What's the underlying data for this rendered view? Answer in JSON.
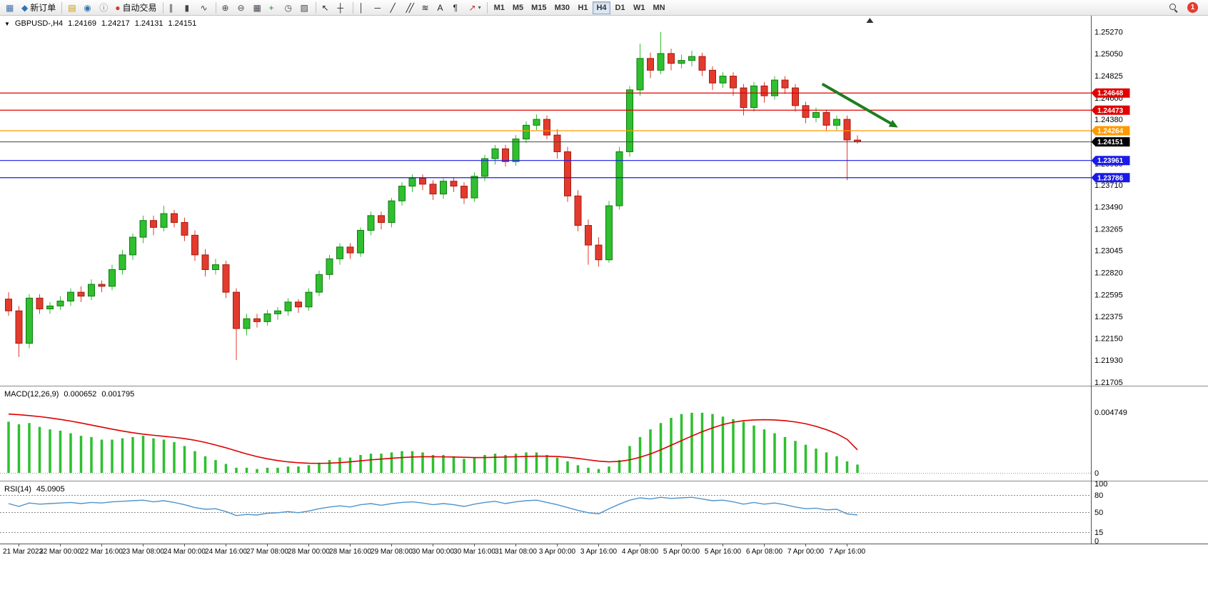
{
  "toolbar": {
    "groups": [
      {
        "items": [
          {
            "name": "new-chart-button",
            "glyph": "▦",
            "color": "#3b6ea5"
          },
          {
            "name": "new-order-button",
            "glyph": "◆",
            "color": "#2e74b5",
            "label": "新订单"
          }
        ]
      },
      {
        "items": [
          {
            "name": "charts-profile-button",
            "glyph": "▤",
            "color": "#c79810"
          },
          {
            "name": "market-watch-button",
            "glyph": "◉",
            "color": "#2e74b5"
          },
          {
            "name": "data-window-button",
            "glyph": "ⓘ",
            "color": "#777777"
          },
          {
            "name": "autotrading-button",
            "glyph": "●",
            "color": "#d23b2f",
            "label": "自动交易"
          }
        ]
      },
      {
        "items": [
          {
            "name": "bar-chart-button",
            "glyph": "∥",
            "color": "#444444"
          },
          {
            "name": "candlestick-chart-button",
            "glyph": "▮",
            "color": "#444444"
          },
          {
            "name": "line-chart-button",
            "glyph": "∿",
            "color": "#444444"
          }
        ]
      },
      {
        "items": [
          {
            "name": "zoom-in-button",
            "glyph": "⊕",
            "color": "#444444"
          },
          {
            "name": "zoom-out-button",
            "glyph": "⊖",
            "color": "#444444"
          },
          {
            "name": "tile-windows-button",
            "glyph": "▦",
            "color": "#444444"
          },
          {
            "name": "indicators-button",
            "glyph": "+",
            "color": "#1f8a1f"
          },
          {
            "name": "periods-button",
            "glyph": "◷",
            "color": "#444444"
          },
          {
            "name": "templates-button",
            "glyph": "▨",
            "color": "#444444"
          }
        ]
      },
      {
        "items": [
          {
            "name": "cursor-button",
            "glyph": "↖",
            "color": "#222222"
          },
          {
            "name": "crosshair-button",
            "glyph": "┼",
            "color": "#222222"
          }
        ]
      },
      {
        "items": [
          {
            "name": "vertical-line-button",
            "glyph": "│",
            "color": "#222222"
          },
          {
            "name": "horizontal-line-button",
            "glyph": "─",
            "color": "#222222"
          },
          {
            "name": "trendline-button",
            "glyph": "╱",
            "color": "#222222"
          },
          {
            "name": "equidistant-channel-button",
            "glyph": "╱╱",
            "color": "#222222"
          },
          {
            "name": "fibonacci-button",
            "glyph": "≋",
            "color": "#222222"
          },
          {
            "name": "text-button",
            "glyph": "A",
            "color": "#222222"
          },
          {
            "name": "text-label-button",
            "glyph": "¶",
            "color": "#222222"
          },
          {
            "name": "arrows-button",
            "glyph": "↗",
            "color": "#c03a2b",
            "caret": "▾"
          }
        ]
      }
    ],
    "timeframes": [
      {
        "label": "M1"
      },
      {
        "label": "M5"
      },
      {
        "label": "M15"
      },
      {
        "label": "M30"
      },
      {
        "label": "H1"
      },
      {
        "label": "H4",
        "active": true
      },
      {
        "label": "D1"
      },
      {
        "label": "W1"
      },
      {
        "label": "MN"
      }
    ],
    "right_items": [
      {
        "name": "search-button",
        "icon": "magnifier"
      },
      {
        "name": "notifications-button",
        "icon": "badge",
        "badge": "1"
      }
    ]
  },
  "chart": {
    "header": {
      "triangle": "▼",
      "symbol_period": "GBPUSD-,H4",
      "open": "1.24169",
      "high": "1.24217",
      "low": "1.24131",
      "close": "1.24151"
    },
    "macd_label": {
      "name": "MACD(12,26,9)",
      "value": "0.000652",
      "signal": "0.001795"
    },
    "rsi_label": {
      "name": "RSI(14)",
      "value": "45.0905"
    }
  },
  "chart_data": {
    "type": "candlestick",
    "symbol": "GBPUSD-",
    "timeframe": "H4",
    "colors": {
      "up": "#2fbf2f",
      "up_border": "#117a11",
      "down": "#e23b2e",
      "down_border": "#a31b10",
      "macd_histogram": "#2fbf2f",
      "macd_signal": "#dd0000",
      "rsi_line": "#4f94cd",
      "hline_red": "#e00000",
      "hline_orange": "#ff9900",
      "hline_blue": "#1a1ae6",
      "current_price_tag": "#000000"
    },
    "ohlc": [
      [
        1.2255,
        1.2262,
        1.2238,
        1.2243
      ],
      [
        1.2243,
        1.2248,
        1.2196,
        1.221
      ],
      [
        1.221,
        1.226,
        1.2205,
        1.2256
      ],
      [
        1.2256,
        1.226,
        1.224,
        1.2245
      ],
      [
        1.2245,
        1.2252,
        1.224,
        1.2248
      ],
      [
        1.2248,
        1.2258,
        1.2244,
        1.2253
      ],
      [
        1.2253,
        1.2266,
        1.2248,
        1.2262
      ],
      [
        1.2262,
        1.2268,
        1.2252,
        1.2258
      ],
      [
        1.2258,
        1.2275,
        1.2254,
        1.227
      ],
      [
        1.227,
        1.2274,
        1.2262,
        1.2268
      ],
      [
        1.2268,
        1.229,
        1.2264,
        1.2285
      ],
      [
        1.2285,
        1.2305,
        1.228,
        1.23
      ],
      [
        1.23,
        1.2322,
        1.2295,
        1.2318
      ],
      [
        1.2318,
        1.234,
        1.2312,
        1.2335
      ],
      [
        1.2335,
        1.234,
        1.232,
        1.2328
      ],
      [
        1.2328,
        1.235,
        1.2324,
        1.2342
      ],
      [
        1.2342,
        1.2346,
        1.2328,
        1.2333
      ],
      [
        1.2333,
        1.2338,
        1.2314,
        1.232
      ],
      [
        1.232,
        1.2325,
        1.2294,
        1.23
      ],
      [
        1.23,
        1.2306,
        1.2278,
        1.2285
      ],
      [
        1.2285,
        1.2296,
        1.228,
        1.229
      ],
      [
        1.229,
        1.2294,
        1.2256,
        1.2262
      ],
      [
        1.2262,
        1.2266,
        1.2193,
        1.2225
      ],
      [
        1.2225,
        1.224,
        1.2218,
        1.2235
      ],
      [
        1.2235,
        1.224,
        1.2226,
        1.2232
      ],
      [
        1.2232,
        1.2244,
        1.2228,
        1.224
      ],
      [
        1.224,
        1.2247,
        1.2234,
        1.2243
      ],
      [
        1.2243,
        1.2256,
        1.2238,
        1.2252
      ],
      [
        1.2252,
        1.2255,
        1.2241,
        1.2247
      ],
      [
        1.2247,
        1.2266,
        1.2243,
        1.2262
      ],
      [
        1.2262,
        1.2284,
        1.2258,
        1.228
      ],
      [
        1.228,
        1.23,
        1.2275,
        1.2296
      ],
      [
        1.2296,
        1.2312,
        1.229,
        1.2308
      ],
      [
        1.2308,
        1.2312,
        1.2296,
        1.2302
      ],
      [
        1.2302,
        1.2328,
        1.2298,
        1.2325
      ],
      [
        1.2325,
        1.2344,
        1.232,
        1.234
      ],
      [
        1.234,
        1.2344,
        1.2326,
        1.2333
      ],
      [
        1.2333,
        1.2358,
        1.2328,
        1.2355
      ],
      [
        1.2355,
        1.2374,
        1.235,
        1.237
      ],
      [
        1.237,
        1.2382,
        1.2364,
        1.2378
      ],
      [
        1.2378,
        1.2382,
        1.2366,
        1.2372
      ],
      [
        1.2372,
        1.2376,
        1.2356,
        1.2362
      ],
      [
        1.2362,
        1.2378,
        1.2357,
        1.2375
      ],
      [
        1.2375,
        1.2379,
        1.2364,
        1.237
      ],
      [
        1.237,
        1.2374,
        1.2352,
        1.2358
      ],
      [
        1.2358,
        1.2384,
        1.2354,
        1.238
      ],
      [
        1.238,
        1.2402,
        1.2375,
        1.2398
      ],
      [
        1.2398,
        1.2412,
        1.2392,
        1.2408
      ],
      [
        1.2408,
        1.2412,
        1.239,
        1.2395
      ],
      [
        1.2395,
        1.2422,
        1.2391,
        1.2418
      ],
      [
        1.2418,
        1.2436,
        1.2414,
        1.2432
      ],
      [
        1.2432,
        1.2443,
        1.2427,
        1.2438
      ],
      [
        1.2438,
        1.2442,
        1.2418,
        1.2422
      ],
      [
        1.2422,
        1.2428,
        1.2398,
        1.2405
      ],
      [
        1.2405,
        1.241,
        1.2354,
        1.236
      ],
      [
        1.236,
        1.2366,
        1.2324,
        1.233
      ],
      [
        1.233,
        1.2336,
        1.229,
        1.231
      ],
      [
        1.231,
        1.2318,
        1.2288,
        1.2295
      ],
      [
        1.2295,
        1.2355,
        1.2292,
        1.235
      ],
      [
        1.235,
        1.241,
        1.2346,
        1.2405
      ],
      [
        1.2405,
        1.2472,
        1.24,
        1.2468
      ],
      [
        1.2468,
        1.2515,
        1.2462,
        1.25
      ],
      [
        1.25,
        1.2506,
        1.248,
        1.2488
      ],
      [
        1.2488,
        1.2527,
        1.2484,
        1.2505
      ],
      [
        1.2505,
        1.251,
        1.2488,
        1.2495
      ],
      [
        1.2495,
        1.2504,
        1.249,
        1.2498
      ],
      [
        1.2498,
        1.2508,
        1.2492,
        1.2502
      ],
      [
        1.2502,
        1.2506,
        1.2482,
        1.2488
      ],
      [
        1.2488,
        1.2492,
        1.2468,
        1.2475
      ],
      [
        1.2475,
        1.2486,
        1.247,
        1.2482
      ],
      [
        1.2482,
        1.2486,
        1.2462,
        1.247
      ],
      [
        1.247,
        1.2474,
        1.2442,
        1.245
      ],
      [
        1.245,
        1.2476,
        1.2446,
        1.2472
      ],
      [
        1.2472,
        1.2476,
        1.2455,
        1.2462
      ],
      [
        1.2462,
        1.2482,
        1.2458,
        1.2478
      ],
      [
        1.2478,
        1.2482,
        1.2464,
        1.247
      ],
      [
        1.247,
        1.2474,
        1.2446,
        1.2452
      ],
      [
        1.2452,
        1.2456,
        1.2434,
        1.244
      ],
      [
        1.244,
        1.245,
        1.2435,
        1.2445
      ],
      [
        1.2445,
        1.2448,
        1.2426,
        1.2432
      ],
      [
        1.2432,
        1.2442,
        1.2427,
        1.2438
      ],
      [
        1.2438,
        1.2442,
        1.2376,
        1.2417
      ],
      [
        1.24169,
        1.24217,
        1.24131,
        1.24151
      ]
    ],
    "price_axis_ticks": [
      "1.25270",
      "1.25050",
      "1.24825",
      "1.24600",
      "1.24380",
      "1.24155",
      "1.23930",
      "1.23710",
      "1.23490",
      "1.23265",
      "1.23045",
      "1.22820",
      "1.22595",
      "1.22375",
      "1.22150",
      "1.21930",
      "1.21705"
    ],
    "time_axis_labels": [
      "21 Mar 2023",
      "22 Mar 00:00",
      "22 Mar 16:00",
      "23 Mar 08:00",
      "24 Mar 00:00",
      "24 Mar 16:00",
      "27 Mar 08:00",
      "28 Mar 00:00",
      "28 Mar 16:00",
      "29 Mar 08:00",
      "30 Mar 00:00",
      "30 Mar 16:00",
      "31 Mar 08:00",
      "3 Apr 00:00",
      "3 Apr 16:00",
      "4 Apr 08:00",
      "5 Apr 00:00",
      "5 Apr 16:00",
      "6 Apr 08:00",
      "7 Apr 00:00",
      "7 Apr 16:00"
    ],
    "hlines": [
      {
        "price": 1.24648,
        "label": "1.24648",
        "color": "#e00000"
      },
      {
        "price": 1.24473,
        "label": "1.24473",
        "color": "#e00000"
      },
      {
        "price": 1.24264,
        "label": "1.24264",
        "color": "#ff9900"
      },
      {
        "price": 1.23961,
        "label": "1.23961",
        "color": "#1a1ae6"
      },
      {
        "price": 1.23786,
        "label": "1.23786",
        "color": "#1a1ae6"
      }
    ],
    "current_price": {
      "value": 1.24151,
      "label": "1.24151"
    },
    "arrow": {
      "from_index": 78.6,
      "from_price": 1.2474,
      "to_index": 85.2,
      "to_price": 1.2434,
      "color": "#1e7d1e"
    },
    "shift_marker_index": 83.2,
    "macd": {
      "histogram": [
        0.004,
        0.0038,
        0.0039,
        0.0036,
        0.0034,
        0.0033,
        0.0031,
        0.0029,
        0.0028,
        0.0026,
        0.0026,
        0.0027,
        0.0028,
        0.0029,
        0.0027,
        0.0026,
        0.0024,
        0.0021,
        0.0017,
        0.0013,
        0.001,
        0.0007,
        0.0004,
        0.0004,
        0.0003,
        0.0004,
        0.0004,
        0.0005,
        0.0005,
        0.0006,
        0.0008,
        0.001,
        0.0012,
        0.0012,
        0.0014,
        0.0015,
        0.0015,
        0.0016,
        0.0017,
        0.0017,
        0.0016,
        0.0014,
        0.0014,
        0.0013,
        0.0011,
        0.0012,
        0.0014,
        0.0015,
        0.0014,
        0.0015,
        0.0016,
        0.0016,
        0.0014,
        0.0012,
        0.0009,
        0.0006,
        0.0004,
        0.0003,
        0.0005,
        0.001,
        0.0021,
        0.0028,
        0.0034,
        0.0039,
        0.0043,
        0.0046,
        0.0047,
        0.0047,
        0.0046,
        0.0044,
        0.0042,
        0.004,
        0.0037,
        0.0034,
        0.0031,
        0.0028,
        0.0025,
        0.0022,
        0.0019,
        0.0016,
        0.0013,
        0.0009,
        0.00065
      ],
      "signal": [
        0.0046,
        0.00455,
        0.00448,
        0.0044,
        0.0043,
        0.00418,
        0.00405,
        0.0039,
        0.00374,
        0.00358,
        0.00342,
        0.00327,
        0.00314,
        0.00303,
        0.00294,
        0.00286,
        0.00278,
        0.00268,
        0.00255,
        0.00238,
        0.00218,
        0.00196,
        0.00172,
        0.00148,
        0.00127,
        0.0011,
        0.00096,
        0.00086,
        0.00079,
        0.00075,
        0.00074,
        0.00076,
        0.0008,
        0.00086,
        0.00094,
        0.00102,
        0.00108,
        0.00114,
        0.0012,
        0.00124,
        0.00126,
        0.00126,
        0.00125,
        0.00124,
        0.00122,
        0.0012,
        0.0012,
        0.00122,
        0.00124,
        0.00126,
        0.00128,
        0.0013,
        0.0013,
        0.00128,
        0.00122,
        0.00113,
        0.00102,
        0.00092,
        0.00086,
        0.0009,
        0.00102,
        0.00122,
        0.00148,
        0.0018,
        0.00216,
        0.00252,
        0.00288,
        0.00322,
        0.00352,
        0.00378,
        0.00396,
        0.00408,
        0.00414,
        0.00416,
        0.00414,
        0.00408,
        0.00398,
        0.00384,
        0.00364,
        0.00338,
        0.00306,
        0.00262,
        0.0018
      ],
      "axis_ticks": [
        {
          "label": "0.004749",
          "value": 0.004749
        },
        {
          "label": "0",
          "value": 0
        }
      ]
    },
    "rsi": {
      "values": [
        65,
        60,
        66,
        64,
        65,
        66,
        67,
        65,
        67,
        66,
        68,
        69,
        70,
        71,
        68,
        70,
        67,
        63,
        58,
        55,
        56,
        51,
        44,
        46,
        45,
        48,
        49,
        51,
        49,
        52,
        56,
        59,
        61,
        59,
        63,
        65,
        62,
        65,
        67,
        68,
        66,
        63,
        65,
        63,
        60,
        64,
        67,
        69,
        65,
        68,
        70,
        71,
        67,
        63,
        58,
        53,
        49,
        47,
        56,
        64,
        71,
        75,
        73,
        76,
        74,
        75,
        76,
        73,
        70,
        71,
        68,
        64,
        67,
        64,
        66,
        63,
        59,
        56,
        57,
        54,
        55,
        47,
        45.09
      ],
      "levels": [
        80,
        50,
        15
      ],
      "axis_ticks": [
        {
          "label": "100",
          "value": 100
        },
        {
          "label": "80",
          "value": 80
        },
        {
          "label": "50",
          "value": 50
        },
        {
          "label": "15",
          "value": 15
        },
        {
          "label": "0",
          "value": 0
        }
      ]
    }
  }
}
